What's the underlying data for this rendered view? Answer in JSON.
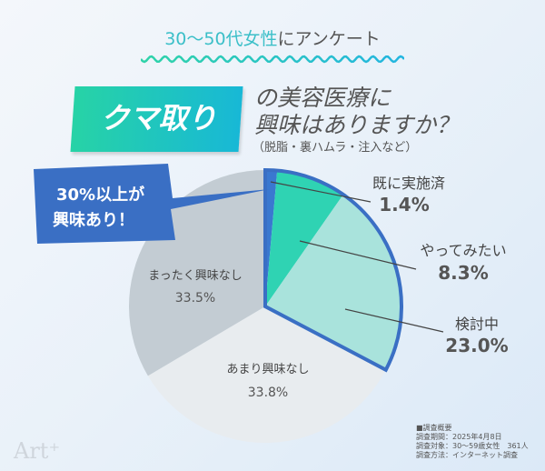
{
  "header": {
    "subtitle_highlight": "30〜50代女性",
    "subtitle_rest": "にアンケート",
    "tag": "クマ取り",
    "question_line1": "の美容医療に",
    "question_line2": "興味はありますか？",
    "question_note": "（脱脂・裏ハムラ・注入など）"
  },
  "callout": {
    "line1": "30%以上が",
    "line2": "興味あり！"
  },
  "chart_data": {
    "type": "pie",
    "start": "12 o'clock, clockwise",
    "unit": "%",
    "slices": [
      {
        "label": "既に実施済",
        "value": 1.4,
        "display": "1.4%",
        "color": "#3a78d0",
        "highlighted": true
      },
      {
        "label": "やってみたい",
        "value": 8.3,
        "display": "8.3%",
        "color": "#2fd3b3",
        "highlighted": true
      },
      {
        "label": "検討中",
        "value": 23.0,
        "display": "23.0%",
        "color": "#a9e3dc",
        "highlighted": true
      },
      {
        "label": "あまり興味なし",
        "value": 33.8,
        "display": "33.8%",
        "color": "#e8ecef",
        "highlighted": false
      },
      {
        "label": "まったく興味なし",
        "value": 33.5,
        "display": "33.5%",
        "color": "#c3ccd3",
        "highlighted": false
      }
    ],
    "highlight_outline_color": "#3a6fc4"
  },
  "notes": [
    "■調査概要",
    "調査期間：2025年4月8日",
    "調査対象：30〜59歳女性　361人",
    "調査方法：インターネット調査"
  ],
  "logo": "Art⁺"
}
